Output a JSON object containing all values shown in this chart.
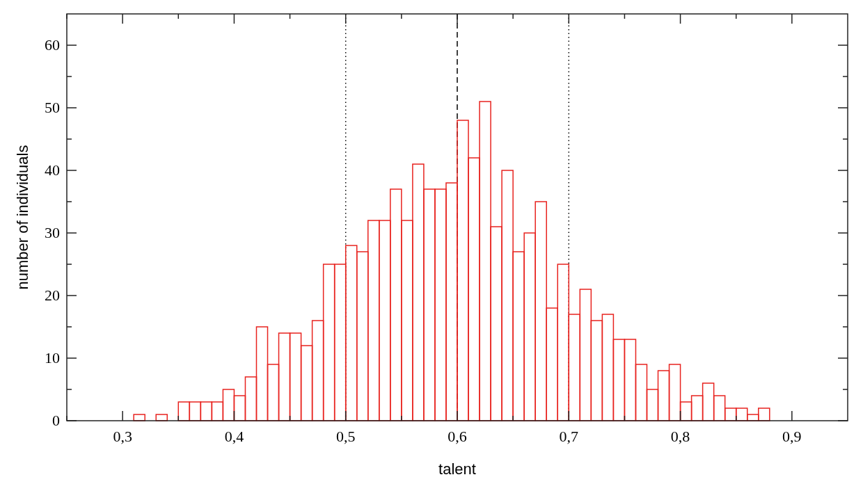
{
  "chart_data": {
    "type": "histogram",
    "xlabel": "talent",
    "ylabel": "number of individuals",
    "bins": [
      0.31,
      0.32,
      0.33,
      0.34,
      0.35,
      0.36,
      0.37,
      0.38,
      0.39,
      0.4,
      0.41,
      0.42,
      0.43,
      0.44,
      0.45,
      0.46,
      0.47,
      0.48,
      0.49,
      0.5,
      0.51,
      0.52,
      0.53,
      0.54,
      0.55,
      0.56,
      0.57,
      0.58,
      0.59,
      0.6,
      0.61,
      0.62,
      0.63,
      0.64,
      0.65,
      0.66,
      0.67,
      0.68,
      0.69,
      0.7,
      0.71,
      0.72,
      0.73,
      0.74,
      0.75,
      0.76,
      0.77,
      0.78,
      0.79,
      0.8,
      0.81,
      0.82,
      0.83,
      0.84,
      0.85,
      0.86,
      0.87,
      0.88
    ],
    "values": [
      1,
      0,
      1,
      0,
      3,
      3,
      3,
      3,
      5,
      4,
      7,
      15,
      9,
      14,
      14,
      12,
      16,
      25,
      25,
      28,
      27,
      32,
      32,
      37,
      32,
      41,
      37,
      37,
      38,
      48,
      42,
      51,
      31,
      40,
      27,
      30,
      35,
      18,
      25,
      17,
      21,
      16,
      17,
      13,
      13,
      9,
      5,
      8,
      9,
      3,
      4,
      6,
      4,
      2,
      2,
      1,
      2
    ],
    "color": "#e8231f",
    "xlim": [
      0.25,
      0.95
    ],
    "xticks": [
      {
        "value": 0.25,
        "label": null
      },
      {
        "value": 0.3,
        "label": "0,3"
      },
      {
        "value": 0.35,
        "label": null
      },
      {
        "value": 0.4,
        "label": "0,4"
      },
      {
        "value": 0.45,
        "label": null
      },
      {
        "value": 0.5,
        "label": "0,5"
      },
      {
        "value": 0.55,
        "label": null
      },
      {
        "value": 0.6,
        "label": "0,6"
      },
      {
        "value": 0.65,
        "label": null
      },
      {
        "value": 0.7,
        "label": "0,7"
      },
      {
        "value": 0.75,
        "label": null
      },
      {
        "value": 0.8,
        "label": "0,8"
      },
      {
        "value": 0.85,
        "label": null
      },
      {
        "value": 0.9,
        "label": "0,9"
      }
    ],
    "ylim": [
      0,
      65
    ],
    "yticks": [
      0,
      {
        "value": 5,
        "label": null
      },
      10,
      {
        "value": 15,
        "label": null
      },
      20,
      {
        "value": 25,
        "label": null
      },
      30,
      {
        "value": 35,
        "label": null
      },
      40,
      {
        "value": 45,
        "label": null
      },
      50,
      {
        "value": 55,
        "label": null
      },
      60
    ],
    "ref_lines": [
      {
        "axis": "x",
        "value": 0.5,
        "label": null,
        "line_style": "dotted",
        "color": "#000000"
      },
      {
        "axis": "x",
        "value": 0.6,
        "label": null,
        "line_style": "dashed",
        "color": "#000000"
      },
      {
        "axis": "x",
        "value": 0.7,
        "label": null,
        "line_style": "dotted",
        "color": "#000000"
      }
    ],
    "grid": false
  }
}
